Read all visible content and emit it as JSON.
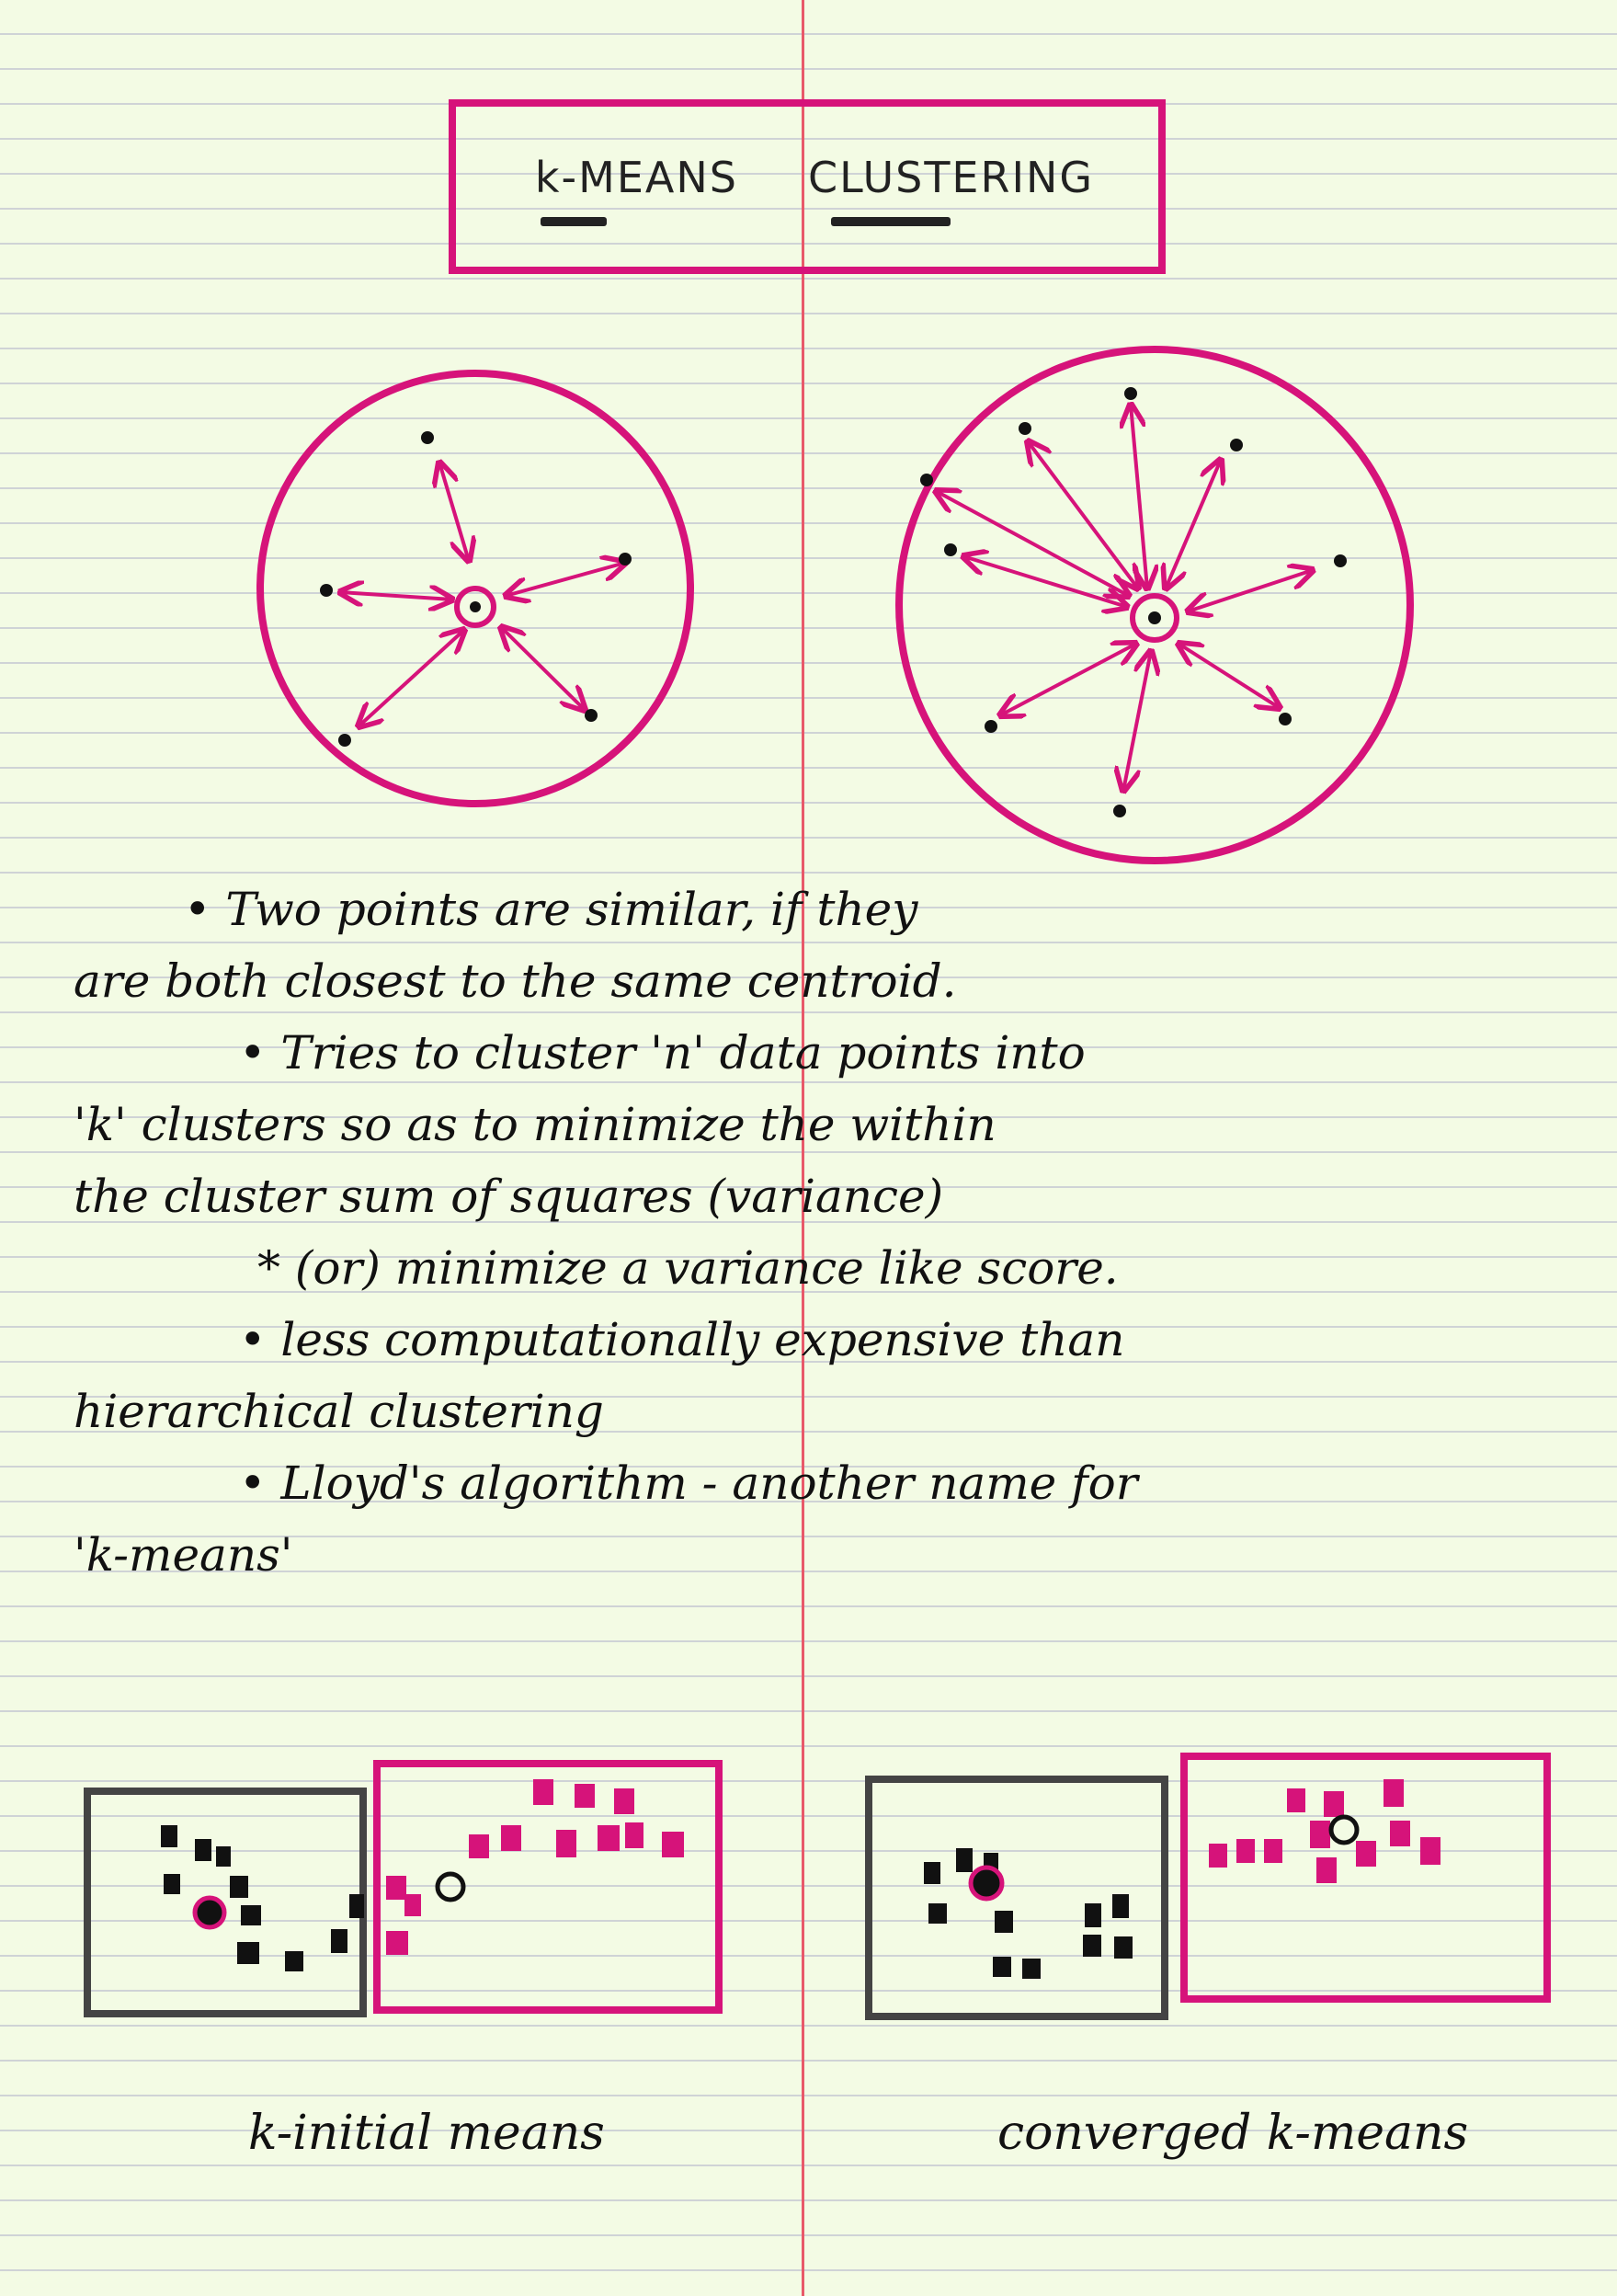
{
  "title": {
    "part1": "k-MEANS",
    "part2": "CLUSTERING"
  },
  "notes": [
    "• Two points are similar, if they",
    "are both closest to the same centroid.",
    "• Tries to cluster 'n' data points into",
    "'k' clusters so as to minimize the within",
    "the cluster sum of squares (variance)",
    "* (or) minimize a variance like score.",
    "• less computationally expensive than",
    "hierarchical clustering",
    "• Lloyd's algorithm - another name for",
    "'k-means'"
  ],
  "captions": {
    "initial": "k-initial means",
    "converged": "converged k-means"
  },
  "colors": {
    "ink": "#111111",
    "accent": "#d6137a",
    "paper": "#f3fbe4",
    "rule": "#cfd3d6",
    "margin": "#e85a6a"
  }
}
